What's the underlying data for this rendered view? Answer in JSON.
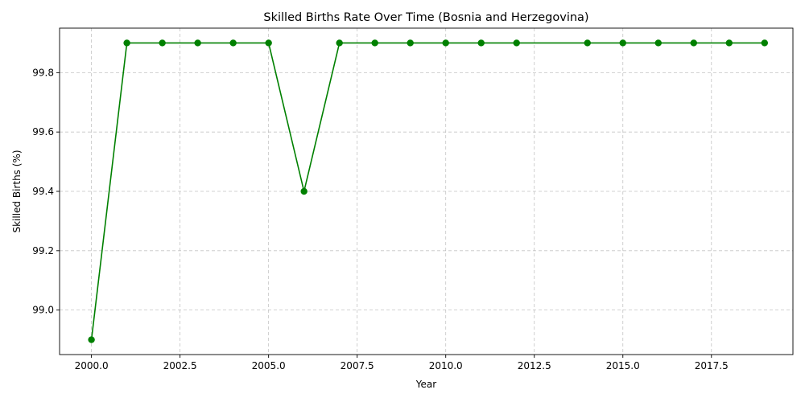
{
  "chart_data": {
    "type": "line",
    "title": "Skilled Births Rate Over Time (Bosnia and Herzegovina)",
    "xlabel": "Year",
    "ylabel": "Skilled Births (%)",
    "xlim": [
      1999.1,
      2019.8
    ],
    "ylim": [
      98.85,
      99.95
    ],
    "x_ticks": [
      2000.0,
      2002.5,
      2005.0,
      2007.5,
      2010.0,
      2012.5,
      2015.0,
      2017.5
    ],
    "x_tick_labels": [
      "2000.0",
      "2002.5",
      "2005.0",
      "2007.5",
      "2010.0",
      "2012.5",
      "2015.0",
      "2017.5"
    ],
    "y_ticks": [
      99.0,
      99.2,
      99.4,
      99.6,
      99.8
    ],
    "y_tick_labels": [
      "99.0",
      "99.2",
      "99.4",
      "99.6",
      "99.8"
    ],
    "grid": true,
    "series": [
      {
        "color": "#008000",
        "marker": "circle",
        "x": [
          2000,
          2001,
          2002,
          2003,
          2004,
          2005,
          2006,
          2007,
          2008,
          2009,
          2010,
          2011,
          2012,
          2014,
          2015,
          2016,
          2017,
          2018,
          2019
        ],
        "y": [
          98.9,
          99.9,
          99.9,
          99.9,
          99.9,
          99.9,
          99.4,
          99.9,
          99.9,
          99.9,
          99.9,
          99.9,
          99.9,
          99.9,
          99.9,
          99.9,
          99.9,
          99.9,
          99.9
        ]
      }
    ]
  }
}
